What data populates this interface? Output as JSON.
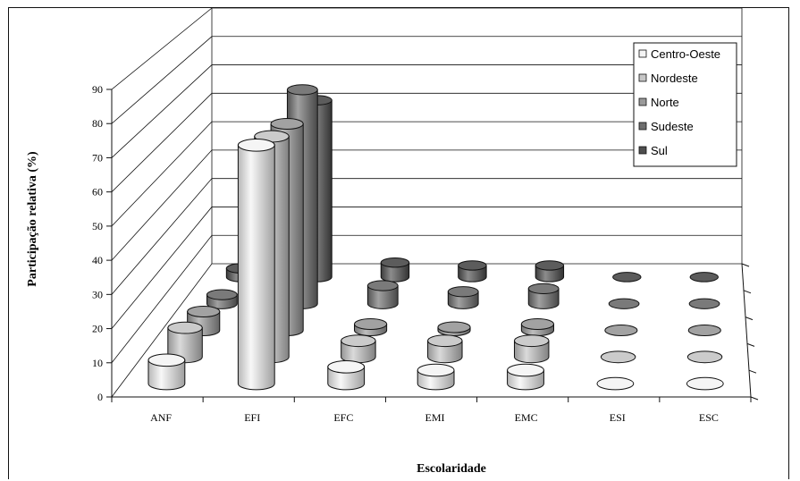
{
  "chart_data": {
    "type": "bar",
    "style": "3d-cylinder",
    "categories": [
      "ANF",
      "EFI",
      "EFC",
      "EMI",
      "EMC",
      "ESI",
      "ESC"
    ],
    "ylabel": "Participação relativa  (%)",
    "xlabel": "Escolaridade",
    "ylim": [
      0,
      90
    ],
    "yticks": [
      0,
      10,
      20,
      30,
      40,
      50,
      60,
      70,
      80,
      90
    ],
    "legend_position": "top-right",
    "grid": true,
    "series": [
      {
        "name": "Centro-Oeste",
        "color": "#f4f4f4",
        "values": [
          7,
          71,
          5,
          4,
          4,
          0,
          0
        ]
      },
      {
        "name": "Nordeste",
        "color": "#c6c6c6",
        "values": [
          9,
          68,
          5,
          5,
          5,
          0,
          0
        ]
      },
      {
        "name": "Norte",
        "color": "#9a9a9a",
        "values": [
          6,
          66,
          2,
          1,
          2,
          0,
          0
        ]
      },
      {
        "name": "Sudeste",
        "color": "#6e6e6e",
        "values": [
          3,
          71,
          6,
          4,
          5,
          0,
          0
        ]
      },
      {
        "name": "Sul",
        "color": "#4e4e4e",
        "values": [
          3,
          61,
          5,
          4,
          4,
          0,
          0
        ]
      }
    ]
  }
}
